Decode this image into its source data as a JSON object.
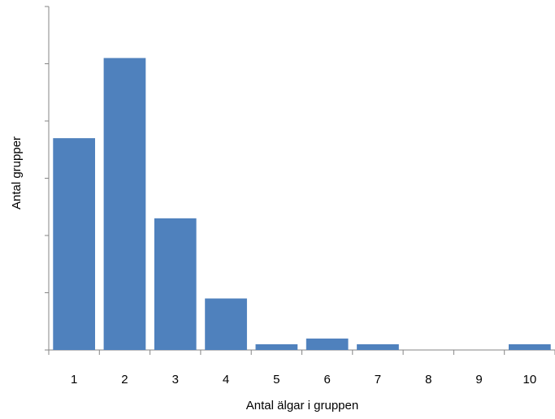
{
  "chart_data": {
    "type": "bar",
    "categories": [
      "1",
      "2",
      "3",
      "4",
      "5",
      "6",
      "7",
      "8",
      "9",
      "10"
    ],
    "values": [
      37,
      51,
      23,
      9,
      1,
      2,
      1,
      0,
      0,
      1
    ],
    "title": "",
    "xlabel": "Antal älgar i gruppen",
    "ylabel": "Antal grupper",
    "ylim": [
      0,
      60
    ],
    "y_tick_labels_shown": false,
    "grid": false,
    "legend": "none",
    "bar_color": "#4f81bd",
    "axis_color": "#868686"
  }
}
